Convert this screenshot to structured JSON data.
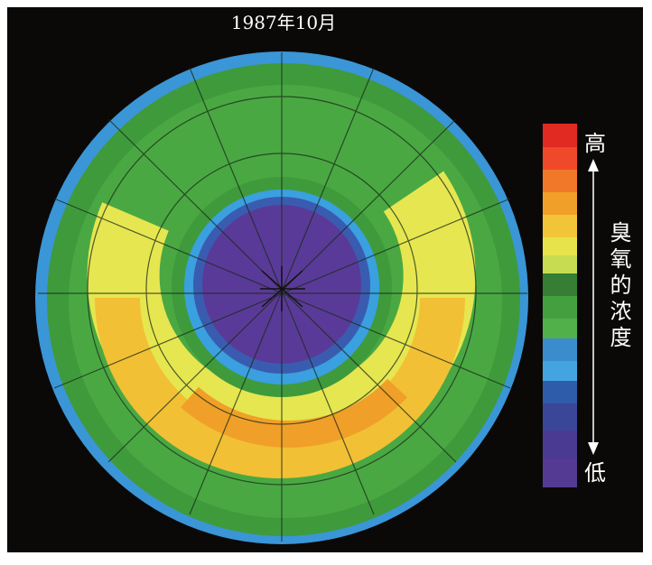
{
  "title": "1987年10月",
  "legend": {
    "high": "高",
    "label": "臭氧的浓度",
    "low": "低"
  }
}
